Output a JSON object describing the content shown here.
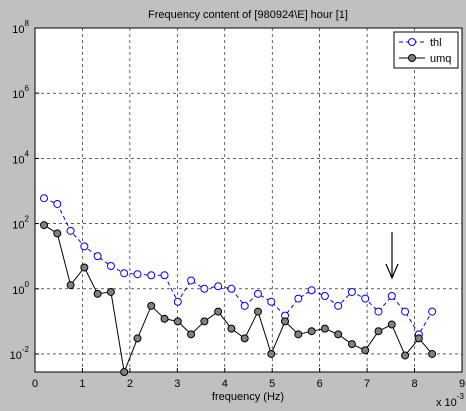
{
  "chart_data": {
    "type": "line",
    "title": "Frequency content of [980924\\E] hour [1]",
    "xlabel": "frequency (Hz)",
    "x_multiplier": "x 10^-3",
    "yscale": "log",
    "grid": true,
    "legend": "upper right",
    "x": [
      0.19,
      0.47,
      0.75,
      1.04,
      1.32,
      1.6,
      1.88,
      2.16,
      2.45,
      2.73,
      3.01,
      3.29,
      3.57,
      3.86,
      4.14,
      4.42,
      4.7,
      4.98,
      5.27,
      5.55,
      5.83,
      6.11,
      6.39,
      6.68,
      6.96,
      7.24,
      7.52,
      7.8,
      8.09,
      8.37
    ],
    "series": [
      {
        "name": "thl",
        "color": "#0000ff",
        "linestyle": "dashed",
        "marker_face": "#ffffff",
        "values": [
          600,
          400,
          60,
          20,
          10,
          5,
          3,
          2.8,
          2.6,
          2.6,
          0.4,
          1.8,
          1,
          1.2,
          1,
          0.3,
          0.7,
          0.4,
          0.15,
          0.5,
          0.9,
          0.6,
          0.3,
          0.8,
          0.5,
          0.2,
          0.6,
          0.2,
          0.04,
          0.2
        ]
      },
      {
        "name": "umq",
        "color": "#000000",
        "linestyle": "solid",
        "marker_face": "#808080",
        "values": [
          90,
          50,
          1.3,
          4.5,
          0.7,
          0.8,
          0.0028,
          0.03,
          0.3,
          0.12,
          0.1,
          0.04,
          0.1,
          0.2,
          0.06,
          0.03,
          0.2,
          0.01,
          0.1,
          0.04,
          0.05,
          0.06,
          0.04,
          0.02,
          0.013,
          0.05,
          0.08,
          0.009,
          0.03,
          0.01
        ]
      }
    ],
    "xlim": [
      0,
      9
    ],
    "xticks": [
      0,
      1,
      2,
      3,
      4,
      5,
      6,
      7,
      8,
      9
    ],
    "ylim": [
      0.0028,
      100000000
    ],
    "yticks": [
      {
        "value": 0.01,
        "label": "10^-2"
      },
      {
        "value": 1,
        "label": "10^0"
      },
      {
        "value": 100,
        "label": "10^2"
      },
      {
        "value": 10000,
        "label": "10^4"
      },
      {
        "value": 1000000,
        "label": "10^6"
      },
      {
        "value": 100000000,
        "label": "10^8"
      }
    ]
  }
}
